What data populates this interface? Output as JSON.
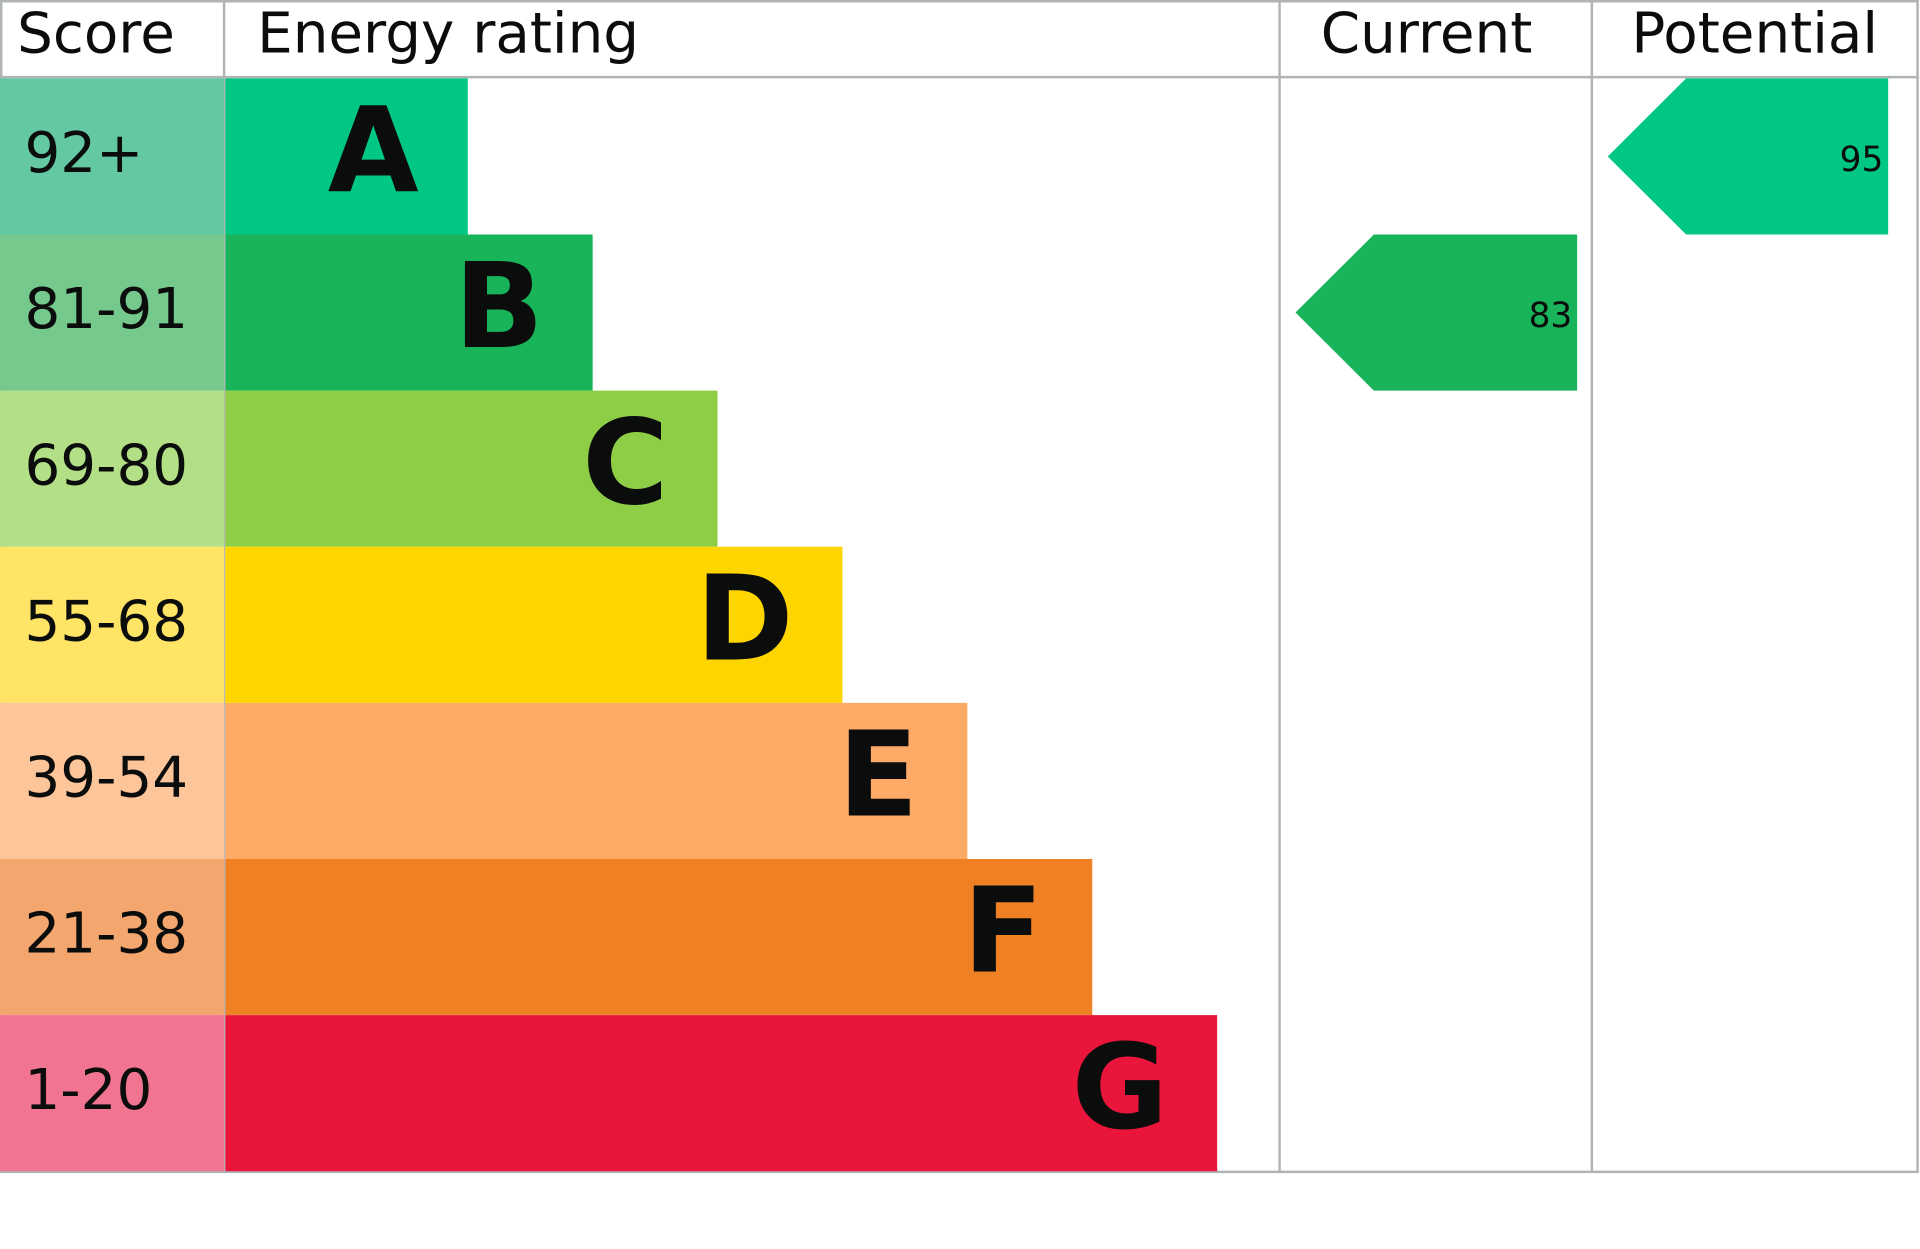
{
  "header": {
    "score": "Score",
    "rating": "Energy rating",
    "current": "Current",
    "potential": "Potential"
  },
  "bands": [
    {
      "score": "92+",
      "letter": "A",
      "color": "#00c781",
      "score_color": "#64c8a3"
    },
    {
      "score": "81-91",
      "letter": "B",
      "color": "#19b459",
      "score_color": "#75c98d"
    },
    {
      "score": "69-80",
      "letter": "C",
      "color": "#8dce46",
      "score_color": "#b3df86"
    },
    {
      "score": "55-68",
      "letter": "D",
      "color": "#ffd500",
      "score_color": "#ffe466"
    },
    {
      "score": "39-54",
      "letter": "E",
      "color": "#fcaa65",
      "score_color": "#fdc59a"
    },
    {
      "score": "21-38",
      "letter": "F",
      "color": "#ef8023",
      "score_color": "#f4a66f"
    },
    {
      "score": "1-20",
      "letter": "G",
      "color": "#e9153b",
      "score_color": "#f17590"
    }
  ],
  "current": {
    "value": 83,
    "color": "#19b459"
  },
  "potential": {
    "value": 95,
    "color": "#00c781"
  }
}
